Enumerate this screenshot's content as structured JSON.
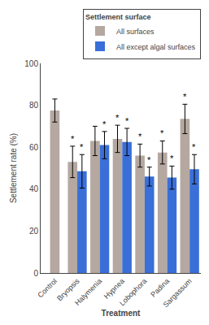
{
  "chart_data": {
    "type": "bar",
    "categories": [
      "Control",
      "Bryopsis",
      "Halymenia",
      "Hypnea",
      "Lobophora",
      "Padina",
      "Sargassum"
    ],
    "series": [
      {
        "name": "All surfaces",
        "color": "#b5a8a0",
        "values": [
          77.5,
          53.0,
          63.0,
          64.0,
          56.0,
          57.5,
          73.5
        ],
        "errors": [
          5.5,
          7.5,
          7.0,
          6.5,
          5.5,
          5.5,
          7.0
        ]
      },
      {
        "name": "All except algal surfaces",
        "color": "#3a6fd8",
        "values": [
          null,
          48.5,
          61.0,
          62.5,
          46.0,
          45.5,
          49.5
        ],
        "errors": [
          null,
          8.0,
          6.5,
          6.5,
          4.5,
          5.5,
          7.0
        ]
      }
    ],
    "annotations": [
      {
        "text": "*",
        "category": "Bryopsis",
        "series": "All surfaces"
      },
      {
        "text": "*",
        "category": "Hypnea",
        "series": "All surfaces"
      },
      {
        "text": "*",
        "category": "Lobophora",
        "series": "All surfaces"
      },
      {
        "text": "*",
        "category": "Padina",
        "series": "All surfaces"
      },
      {
        "text": "*",
        "category": "Sargassum",
        "series": "All surfaces"
      },
      {
        "text": "*",
        "category": "Bryopsis",
        "series": "All except algal surfaces"
      },
      {
        "text": "*",
        "category": "Halymenia",
        "series": "All except algal surfaces"
      },
      {
        "text": "*",
        "category": "Hypnea",
        "series": "All except algal surfaces"
      },
      {
        "text": "*",
        "category": "Lobophora",
        "series": "All except algal surfaces"
      },
      {
        "text": "*",
        "category": "Padina",
        "series": "All except algal surfaces"
      },
      {
        "text": "*",
        "category": "Sargassum",
        "series": "All except algal surfaces"
      }
    ],
    "xlabel": "Treatment",
    "ylabel": "Settlement rate (%)",
    "ylim": [
      0,
      100
    ],
    "yticks": [
      0,
      20,
      40,
      60,
      80,
      100
    ],
    "grid": false,
    "legend": "upper right",
    "legend_title": "Settlement surface"
  }
}
